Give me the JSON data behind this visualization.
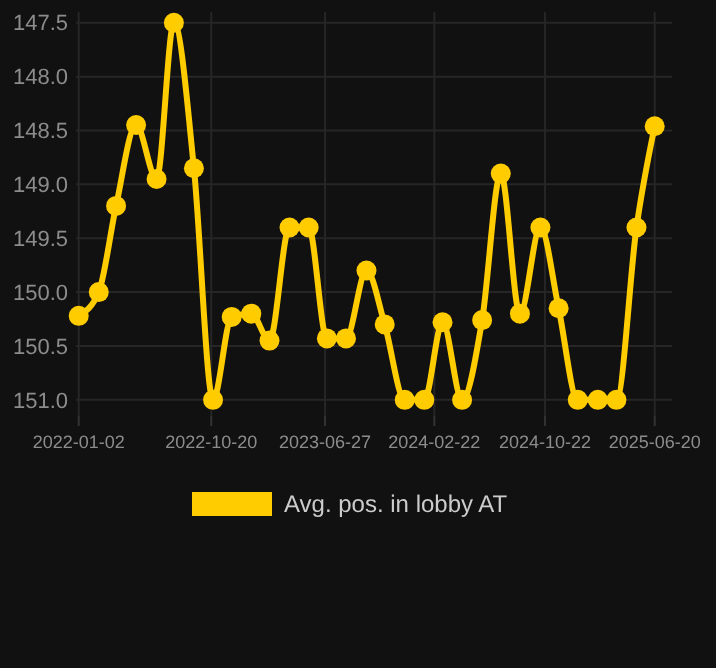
{
  "chart_data": {
    "type": "line",
    "x": [
      "2022-01-02",
      "2022-02-15",
      "2022-03-25",
      "2022-05-08",
      "2022-06-22",
      "2022-07-30",
      "2022-09-12",
      "2022-10-24",
      "2022-12-04",
      "2023-01-16",
      "2023-02-25",
      "2023-04-10",
      "2023-05-22",
      "2023-07-01",
      "2023-08-12",
      "2023-09-26",
      "2023-11-05",
      "2023-12-19",
      "2024-01-31",
      "2024-03-11",
      "2024-04-23",
      "2024-06-06",
      "2024-07-17",
      "2024-08-28",
      "2024-10-12",
      "2024-11-21",
      "2025-01-02",
      "2025-02-15",
      "2025-03-28",
      "2025-05-11",
      "2025-06-20"
    ],
    "series": [
      {
        "name": "Avg. pos. in lobby AT",
        "color": "#ffcc00",
        "values": [
          150.22,
          150.0,
          149.2,
          148.45,
          148.95,
          147.5,
          148.85,
          151.0,
          150.23,
          150.2,
          150.45,
          149.4,
          149.4,
          150.43,
          150.43,
          149.8,
          150.3,
          151.0,
          151.0,
          150.28,
          151.0,
          150.26,
          148.9,
          150.2,
          149.4,
          150.15,
          151.0,
          151.0,
          151.0,
          149.4,
          148.46
        ]
      }
    ],
    "xlim": [
      "2021-12-27",
      "2025-07-28"
    ],
    "ylim": [
      151.15,
      147.4
    ],
    "xticks": [
      {
        "value": "2022-01-02",
        "label": "2022-01-02"
      },
      {
        "value": "2022-10-20",
        "label": "2022-10-20"
      },
      {
        "value": "2023-06-27",
        "label": "2023-06-27"
      },
      {
        "value": "2024-02-22",
        "label": "2024-02-22"
      },
      {
        "value": "2024-10-22",
        "label": "2024-10-22"
      },
      {
        "value": "2025-06-20",
        "label": "2025-06-20"
      }
    ],
    "yticks": [
      {
        "value": 147.5,
        "label": "147.5"
      },
      {
        "value": 148,
        "label": "148.0"
      },
      {
        "value": 148.5,
        "label": "148.5"
      },
      {
        "value": 149,
        "label": "149.0"
      },
      {
        "value": 149.5,
        "label": "149.5"
      },
      {
        "value": 150,
        "label": "150.0"
      },
      {
        "value": 150.5,
        "label": "150.5"
      },
      {
        "value": 151,
        "label": "151.0"
      }
    ],
    "grid": true,
    "legend": "bottom",
    "marker": "circle",
    "line_style": "solid"
  }
}
